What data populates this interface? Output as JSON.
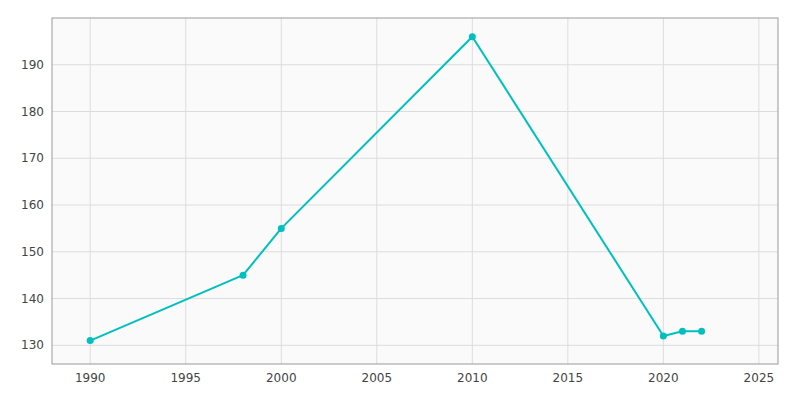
{
  "chart_data": {
    "type": "line",
    "x": [
      1990,
      1998,
      2000,
      2010,
      2020,
      2021,
      2022
    ],
    "values": [
      131,
      145,
      155,
      196,
      132,
      133,
      133
    ],
    "color": "#00BFBF",
    "marker": "circle",
    "xlim": [
      1988,
      2026
    ],
    "ylim": [
      126,
      200
    ],
    "xticks": [
      1990,
      1995,
      2000,
      2005,
      2010,
      2015,
      2020,
      2025
    ],
    "yticks": [
      130,
      140,
      150,
      160,
      170,
      180,
      190
    ],
    "grid": true
  }
}
